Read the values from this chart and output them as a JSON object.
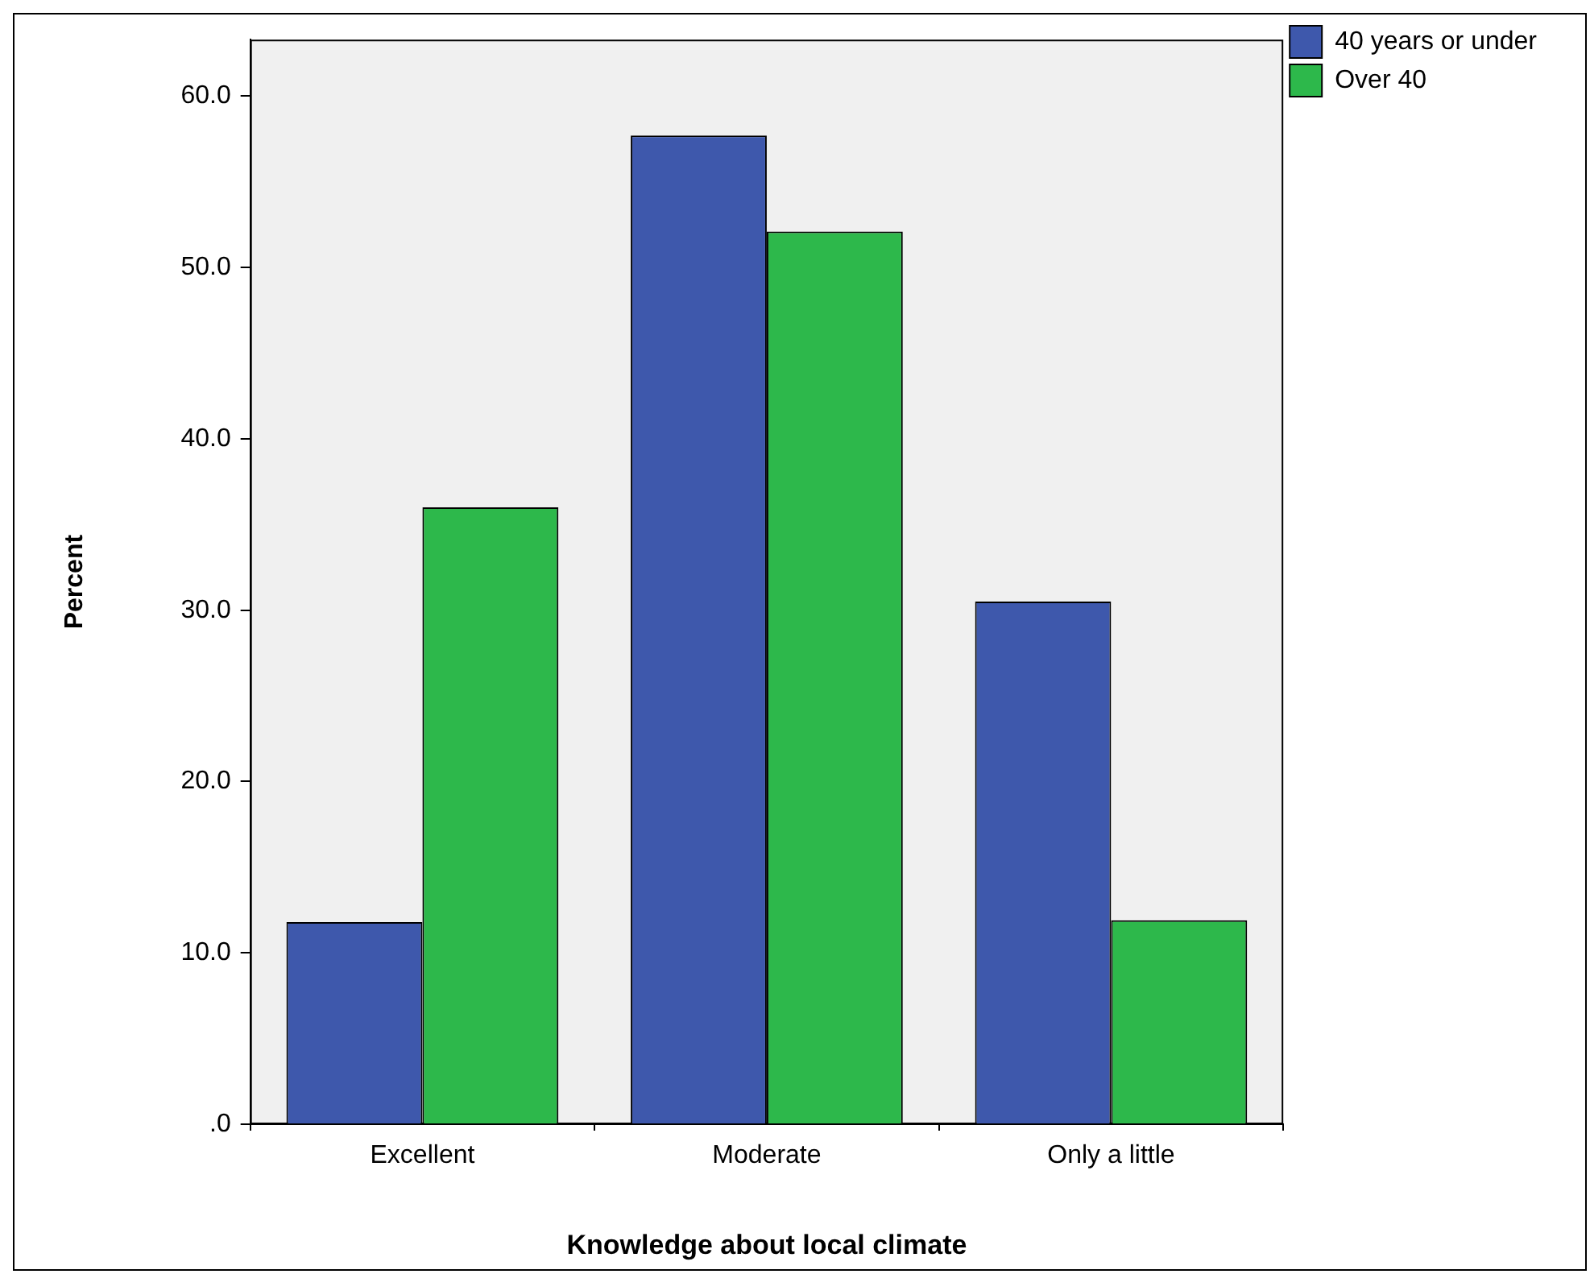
{
  "chart_data": {
    "type": "bar",
    "xlabel": "Knowledge about local climate",
    "ylabel": "Percent",
    "categories": [
      "Excellent",
      "Moderate",
      "Only a little"
    ],
    "series": [
      {
        "name": "40 years or under",
        "color": "#3e58ac",
        "values": [
          11.8,
          57.7,
          30.5
        ]
      },
      {
        "name": "Over 40",
        "color": "#2db84b",
        "values": [
          36.0,
          52.1,
          11.9
        ]
      }
    ],
    "ylim": [
      0,
      63.3
    ],
    "yticks": [
      {
        "value": 0,
        "label": ".0"
      },
      {
        "value": 10,
        "label": "10.0"
      },
      {
        "value": 20,
        "label": "20.0"
      },
      {
        "value": 30,
        "label": "30.0"
      },
      {
        "value": 40,
        "label": "40.0"
      },
      {
        "value": 50,
        "label": "50.0"
      },
      {
        "value": 60,
        "label": "60.0"
      }
    ],
    "grid": false,
    "legend": "top right"
  }
}
